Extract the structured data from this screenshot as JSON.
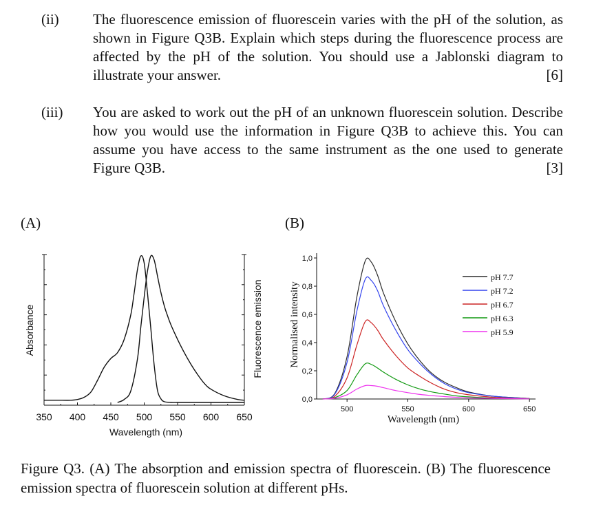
{
  "questions": [
    {
      "number": "(ii)",
      "text": "The fluorescence emission of fluorescein varies with the pH of the solution, as shown in Figure Q3B. Explain which steps during the fluorescence process are affected by the pH of the solution. You should use a Jablonski diagram to illustrate your answer.",
      "marks": "[6]"
    },
    {
      "number": "(iii)",
      "text": "You are asked to work out the pH of an unknown fluorescein solution. Describe how you would use the information in Figure Q3B to achieve this. You can assume you have access to the same instrument as the one used to generate Figure Q3B.",
      "marks": "[3]"
    }
  ],
  "panel_labels": {
    "a": "(A)",
    "b": "(B)"
  },
  "chart_data": [
    {
      "type": "line",
      "panel": "(A)",
      "xlabel": "Wavelength (nm)",
      "ylabel_left": "Absorbance",
      "ylabel_right": "Fluorescence emission",
      "xlim": [
        350,
        650
      ],
      "xticks": [
        "350",
        "400",
        "450",
        "500",
        "550",
        "600",
        "650"
      ],
      "ylim": [
        0,
        1
      ],
      "series": [
        {
          "x": [
            350,
            370,
            390,
            400,
            410,
            420,
            430,
            440,
            450,
            460,
            470,
            480,
            485,
            490,
            495,
            500,
            505,
            510,
            515,
            520,
            525,
            530,
            540,
            550,
            560,
            570,
            580,
            600,
            620,
            650
          ],
          "y": [
            0.015,
            0.015,
            0.015,
            0.02,
            0.035,
            0.07,
            0.15,
            0.24,
            0.3,
            0.34,
            0.43,
            0.6,
            0.75,
            0.91,
            1.0,
            0.95,
            0.74,
            0.5,
            0.25,
            0.08,
            0.025,
            0.005,
            0.0,
            0.0,
            0.0,
            0.0,
            0.0,
            0.0,
            0.0,
            0.0
          ]
        },
        {
          "x": [
            460,
            470,
            480,
            490,
            495,
            500,
            505,
            510,
            515,
            520,
            525,
            530,
            535,
            540,
            550,
            560,
            570,
            580,
            590,
            600,
            620,
            640,
            650
          ],
          "y": [
            0.0,
            0.02,
            0.08,
            0.3,
            0.52,
            0.72,
            0.9,
            1.0,
            0.97,
            0.86,
            0.75,
            0.66,
            0.59,
            0.53,
            0.43,
            0.34,
            0.26,
            0.19,
            0.13,
            0.09,
            0.045,
            0.02,
            0.015
          ]
        }
      ]
    },
    {
      "type": "line",
      "panel": "(B)",
      "xlabel": "Wavelength (nm)",
      "ylabel": "Normalised intensity",
      "xlim": [
        475,
        655
      ],
      "ylim": [
        0,
        1.0
      ],
      "xticks": [
        "500",
        "550",
        "600",
        "650"
      ],
      "yticks": [
        "0,0",
        "0,2",
        "0,4",
        "0,6",
        "0,8",
        "1,0"
      ],
      "legend_position": "right",
      "peak_x": [
        480,
        490,
        500,
        508,
        515,
        520,
        525,
        530,
        540,
        550,
        560,
        570,
        580,
        590,
        600,
        620,
        640,
        650
      ],
      "series": [
        {
          "name": "pH 7.7",
          "color": "#2b2b2b",
          "values": [
            0.0,
            0.04,
            0.3,
            0.72,
            0.98,
            0.97,
            0.88,
            0.75,
            0.55,
            0.39,
            0.27,
            0.18,
            0.12,
            0.08,
            0.05,
            0.02,
            0.008,
            0.004
          ]
        },
        {
          "name": "pH 7.2",
          "color": "#3344ee",
          "values": [
            0.0,
            0.035,
            0.26,
            0.62,
            0.85,
            0.84,
            0.77,
            0.66,
            0.49,
            0.35,
            0.25,
            0.17,
            0.11,
            0.07,
            0.045,
            0.02,
            0.008,
            0.004
          ]
        },
        {
          "name": "pH 6.7",
          "color": "#cc2222",
          "values": [
            0.0,
            0.02,
            0.15,
            0.38,
            0.55,
            0.54,
            0.49,
            0.42,
            0.31,
            0.22,
            0.16,
            0.11,
            0.07,
            0.045,
            0.03,
            0.012,
            0.005,
            0.003
          ]
        },
        {
          "name": "pH 6.3",
          "color": "#119911",
          "values": [
            0.0,
            0.01,
            0.06,
            0.17,
            0.25,
            0.245,
            0.22,
            0.19,
            0.14,
            0.1,
            0.07,
            0.05,
            0.035,
            0.022,
            0.015,
            0.006,
            0.003,
            0.002
          ]
        },
        {
          "name": "pH 5.9",
          "color": "#ee33ee",
          "values": [
            0.0,
            0.005,
            0.03,
            0.07,
            0.095,
            0.095,
            0.09,
            0.08,
            0.06,
            0.045,
            0.032,
            0.024,
            0.017,
            0.012,
            0.008,
            0.004,
            0.002,
            0.001
          ]
        }
      ]
    }
  ],
  "caption": "Figure Q3. (A) The absorption and emission spectra of fluorescein. (B) The fluorescence emission spectra of fluorescein solution at different pHs."
}
